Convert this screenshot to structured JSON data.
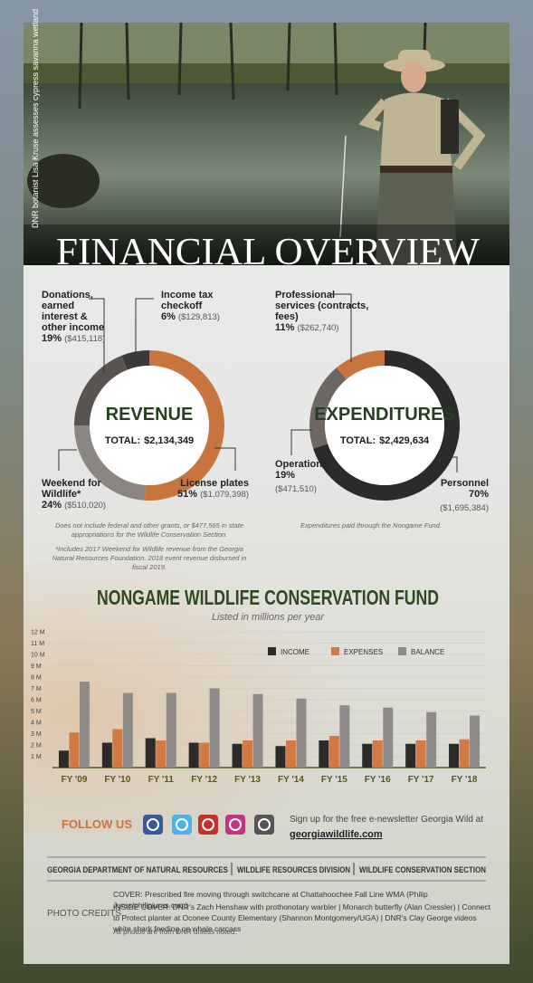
{
  "photo": {
    "caption": "DNR botanist Lisa Kruse assesses cypress savanna wetland"
  },
  "header": {
    "title": "FINANCIAL OVERVIEW"
  },
  "chart_data": [
    {
      "type": "pie",
      "title": "REVENUE",
      "total_label": "TOTAL:",
      "total": {
        "value": 2134349,
        "label": "$2,134,349"
      },
      "categories": [
        "License plates",
        "Weekend for Wildlife*",
        "Donations, earned interest & other income",
        "Income tax checkoff"
      ],
      "values": [
        51,
        24,
        19,
        6
      ],
      "value_labels": [
        "51%",
        "24%",
        "19%",
        "6%"
      ],
      "amounts": [
        1079398,
        510020,
        415118,
        129813
      ],
      "amount_labels": [
        "($1,079,398)",
        "($510,020)",
        "($415,118)",
        "($129,813)"
      ],
      "colors": [
        "#c8743f",
        "#8c8682",
        "#595452",
        "#3b3937"
      ],
      "note": "Does not include federal and other grants, or $477,565 in state appropriations for the Wildlife Conservation Section.",
      "footnote": "*Includes 2017 Weekend for Wildlife revenue from the Georgia Natural Resources Foundation. 2018 event revenue disbursed in fiscal 2019."
    },
    {
      "type": "pie",
      "title": "EXPENDITURES",
      "total_label": "TOTAL:",
      "total": {
        "value": 2429634,
        "label": "$2,429,634"
      },
      "categories": [
        "Personnel",
        "Operations",
        "Professional services (contracts, fees)"
      ],
      "values": [
        70,
        19,
        11
      ],
      "value_labels": [
        "70%",
        "19%",
        "11%"
      ],
      "amounts": [
        1695384,
        471510,
        262740
      ],
      "amount_labels": [
        "($1,695,384)",
        "($471,510)",
        "($262,740)"
      ],
      "colors": [
        "#2d2b2a",
        "#6e6864",
        "#c8743f"
      ],
      "note": "Expenditures paid through the Nongame Fund."
    },
    {
      "type": "bar",
      "title": "NONGAME WILDLIFE CONSERVATION FUND",
      "subtitle": "Listed in millions per year",
      "categories": [
        "FY '09",
        "FY '10",
        "FY '11",
        "FY '12",
        "FY '13",
        "FY '14",
        "FY '15",
        "FY '16",
        "FY '17",
        "FY '18"
      ],
      "series": [
        {
          "name": "INCOME",
          "color": "#2b2b2b",
          "values": [
            1.5,
            2.2,
            2.6,
            2.2,
            2.1,
            1.9,
            2.4,
            2.1,
            2.1,
            2.1
          ]
        },
        {
          "name": "EXPENSES",
          "color": "#d07a45",
          "values": [
            3.1,
            3.4,
            2.4,
            2.2,
            2.4,
            2.4,
            2.8,
            2.4,
            2.4,
            2.5
          ]
        },
        {
          "name": "BALANCE",
          "color": "#8f8b88",
          "values": [
            7.6,
            6.6,
            6.6,
            7.0,
            6.5,
            6.1,
            5.5,
            5.3,
            4.9,
            4.6
          ]
        }
      ],
      "ylim": [
        0,
        12
      ],
      "yticks": [
        {
          "value": 1,
          "label": "1 M"
        },
        {
          "value": 2,
          "label": "2 M"
        },
        {
          "value": 3,
          "label": "3 M"
        },
        {
          "value": 4,
          "label": "4 M"
        },
        {
          "value": 5,
          "label": "5 M"
        },
        {
          "value": 6,
          "label": "6 M"
        },
        {
          "value": 7,
          "label": "7 M"
        },
        {
          "value": 8,
          "label": "8 M"
        },
        {
          "value": 9,
          "label": "9 M"
        },
        {
          "value": 10,
          "label": "10 M"
        },
        {
          "value": 11,
          "label": "11 M"
        },
        {
          "value": 12,
          "label": "12 M"
        }
      ],
      "grid": true
    }
  ],
  "follow": {
    "label": "FOLLOW US",
    "signup": "Sign up for the free e-newsletter Georgia Wild at",
    "link": "georgiawildlife.com"
  },
  "agency": [
    "GEORGIA DEPARTMENT OF NATURAL RESOURCES",
    "WILDLIFE RESOURCES DIVISION",
    "WILDLIFE CONSERVATION SECTION"
  ],
  "credits": {
    "label": "PHOTO CREDITS",
    "cover": "COVER: Prescribed fire moving through switchcane at Chattahoochee Fall Line WMA (Philip Juras/philipjuras.com)",
    "inside_cover": "INSIDE COVER: DNR's Zach Henshaw with prothonotary warbler | Monarch butterfly (Alan Cressler) | Connect to Protect planter at Oconee County Elementary (Shannon Montgomery/UGA) | DNR's Clay George videos white shark feeding on whale carcass",
    "note": "All photos are from DNR unless noted."
  }
}
